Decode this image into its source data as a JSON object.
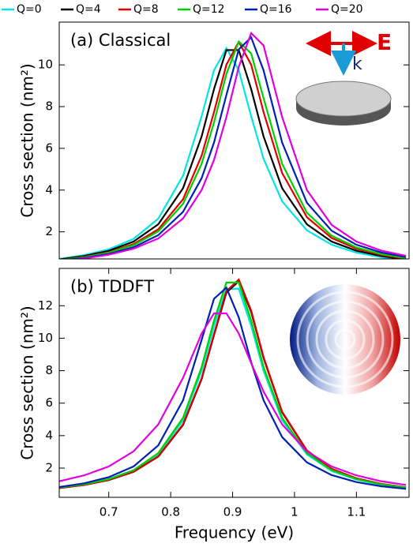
{
  "chart_data": [
    {
      "type": "line",
      "annotation": "(a) Classical",
      "ylabel": "Cross section (nm²)",
      "inset_labels": [
        "E",
        "k"
      ],
      "x": [
        0.62,
        0.66,
        0.7,
        0.74,
        0.78,
        0.82,
        0.85,
        0.87,
        0.89,
        0.91,
        0.93,
        0.95,
        0.98,
        1.02,
        1.06,
        1.1,
        1.14,
        1.18
      ],
      "xlim": [
        0.62,
        1.185
      ],
      "ylim": [
        0.7,
        12.05
      ],
      "yticks": [
        2,
        4,
        6,
        8,
        10
      ],
      "series": [
        {
          "name": "Q=0",
          "color": "#00e5e5",
          "values": [
            0.7,
            0.88,
            1.16,
            1.66,
            2.63,
            4.69,
            7.54,
            9.74,
            10.8,
            9.74,
            7.54,
            5.5,
            3.46,
            2.07,
            1.38,
            1.0,
            0.78,
            0.63
          ]
        },
        {
          "name": "Q=4",
          "color": "#000000",
          "values": [
            0.67,
            0.84,
            1.09,
            1.53,
            2.36,
            4.09,
            6.57,
            8.84,
            10.71,
            10.71,
            8.84,
            6.57,
            4.09,
            2.36,
            1.53,
            1.09,
            0.84,
            0.67
          ]
        },
        {
          "name": "Q=8",
          "color": "#e00000",
          "values": [
            0.65,
            0.79,
            1.02,
            1.41,
            2.12,
            3.56,
            5.65,
            7.74,
            10.01,
            11.1,
            10.01,
            7.74,
            4.82,
            2.7,
            1.7,
            1.19,
            0.89,
            0.71
          ]
        },
        {
          "name": "Q=12",
          "color": "#00d000",
          "values": [
            0.64,
            0.78,
            1.0,
            1.36,
            2.02,
            3.34,
            5.26,
            7.24,
            9.57,
            11.12,
            10.55,
            8.41,
            5.26,
            2.91,
            1.81,
            1.25,
            0.93,
            0.74
          ]
        },
        {
          "name": "Q=16",
          "color": "#0020b0",
          "values": [
            0.62,
            0.75,
            0.94,
            1.26,
            1.84,
            2.96,
            4.57,
            6.28,
            8.56,
            10.74,
            11.32,
            9.74,
            6.28,
            3.39,
            2.05,
            1.38,
            1.01,
            0.79
          ]
        },
        {
          "name": "Q=20",
          "color": "#e000e0",
          "values": [
            0.6,
            0.72,
            0.9,
            1.19,
            1.68,
            2.64,
            4.0,
            5.44,
            7.5,
            9.91,
            11.52,
            10.93,
            7.5,
            4.0,
            2.33,
            1.53,
            1.1,
            0.85
          ]
        }
      ]
    },
    {
      "type": "line",
      "annotation": "(b) TDDFT",
      "ylabel": "Cross section (nm²)",
      "xlabel": "Frequency (eV)",
      "x": [
        0.62,
        0.66,
        0.7,
        0.74,
        0.78,
        0.82,
        0.85,
        0.87,
        0.89,
        0.91,
        0.93,
        0.95,
        0.98,
        1.02,
        1.06,
        1.1,
        1.14,
        1.18
      ],
      "xlim": [
        0.62,
        1.185
      ],
      "xticks": [
        0.7,
        0.8,
        0.9,
        1,
        1.1
      ],
      "ylim": [
        0.2,
        14.3
      ],
      "yticks": [
        2,
        4,
        6,
        8,
        10,
        12
      ],
      "series": [
        {
          "color": "#00e5e5",
          "values": [
            0.78,
            0.98,
            1.29,
            1.82,
            2.84,
            4.95,
            7.99,
            10.76,
            13.04,
            13.04,
            10.76,
            7.99,
            4.95,
            2.84,
            1.82,
            1.29,
            0.98,
            0.78
          ]
        },
        {
          "color": "#000000",
          "values": [
            0.77,
            0.96,
            1.26,
            1.77,
            2.71,
            4.66,
            7.48,
            10.2,
            12.81,
            13.51,
            11.62,
            8.78,
            5.43,
            3.07,
            1.94,
            1.36,
            1.02,
            0.81
          ]
        },
        {
          "color": "#e00000",
          "values": [
            0.77,
            0.96,
            1.27,
            1.78,
            2.72,
            4.7,
            7.53,
            10.27,
            12.9,
            13.61,
            11.7,
            8.84,
            5.47,
            3.09,
            1.96,
            1.37,
            1.03,
            0.81
          ]
        },
        {
          "color": "#00d000",
          "values": [
            0.8,
            1.0,
            1.32,
            1.87,
            2.92,
            5.1,
            8.22,
            11.08,
            13.43,
            13.43,
            11.08,
            8.22,
            5.1,
            2.92,
            1.87,
            1.32,
            1.0,
            0.8
          ]
        },
        {
          "color": "#0020b0",
          "values": [
            0.83,
            1.06,
            1.44,
            2.1,
            3.4,
            6.18,
            9.9,
            12.43,
            13.11,
            11.28,
            8.52,
            6.18,
            3.91,
            2.35,
            1.57,
            1.14,
            0.88,
            0.72
          ]
        },
        {
          "color": "#e000e0",
          "values": [
            1.19,
            1.55,
            2.1,
            3.03,
            4.69,
            7.56,
            10.29,
            11.53,
            11.53,
            10.29,
            8.47,
            6.71,
            4.69,
            3.03,
            2.1,
            1.55,
            1.19,
            0.96
          ]
        }
      ]
    }
  ]
}
